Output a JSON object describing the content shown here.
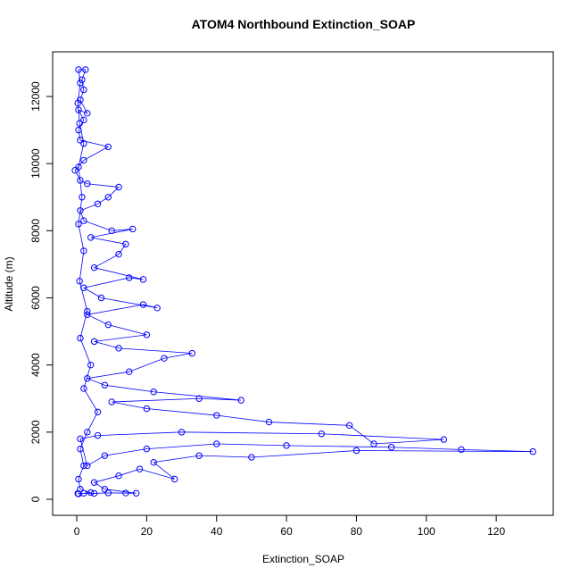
{
  "chart_data": {
    "type": "line",
    "marker": "open-circle",
    "title": "ATOM4 Northbound Extinction_SOAP",
    "x_label": "Extinction_SOAP",
    "y_label": "Altitude (m)",
    "color": "#0000ff",
    "xlim": [
      -6.9,
      136.3
    ],
    "ylim": [
      -479,
      13331
    ],
    "xticks": [
      0,
      20,
      40,
      60,
      80,
      100,
      120
    ],
    "yticks": [
      0,
      2000,
      4000,
      6000,
      8000,
      10000,
      12000
    ],
    "x": [
      0.3,
      2,
      5,
      9,
      14,
      17,
      8,
      5,
      12,
      18,
      28,
      22,
      35,
      50,
      80,
      130.5,
      110,
      90,
      60,
      40,
      20,
      8,
      3,
      1,
      6,
      30,
      70,
      105,
      85,
      78,
      55,
      40,
      20,
      10,
      35,
      47,
      22,
      8,
      3,
      15,
      25,
      33,
      12,
      5,
      20,
      9,
      3,
      19,
      23,
      7,
      2,
      15,
      19,
      5,
      12,
      14,
      4,
      16,
      10,
      2,
      1,
      6,
      9,
      12,
      3,
      1,
      -0.5,
      2,
      9,
      1,
      0.5,
      2,
      0.5,
      3,
      1,
      2,
      1.5,
      2.5,
      0.5,
      1,
      0.3,
      0.8,
      2,
      0.5,
      1.5,
      0.5,
      2,
      0.8,
      3,
      1,
      4,
      2,
      6,
      3,
      1,
      2,
      0.5,
      1,
      4,
      0.5
    ],
    "y": [
      170,
      180,
      175,
      190,
      185,
      180,
      300,
      500,
      700,
      900,
      600,
      1100,
      1300,
      1250,
      1450,
      1420,
      1480,
      1550,
      1600,
      1650,
      1500,
      1300,
      1000,
      1800,
      1900,
      2000,
      1950,
      1780,
      1650,
      2200,
      2300,
      2500,
      2700,
      2900,
      3000,
      2950,
      3200,
      3400,
      3600,
      3800,
      4200,
      4350,
      4500,
      4700,
      4900,
      5200,
      5500,
      5800,
      5700,
      6000,
      6300,
      6600,
      6550,
      6900,
      7300,
      7600,
      7800,
      8050,
      8000,
      8300,
      8600,
      8800,
      9000,
      9300,
      9400,
      9500,
      9800,
      10100,
      10500,
      10700,
      11000,
      11300,
      11600,
      11500,
      11900,
      12200,
      12500,
      12800,
      12800,
      12400,
      11800,
      11200,
      10600,
      9900,
      9000,
      8200,
      7400,
      6500,
      5600,
      4800,
      4000,
      3300,
      2600,
      2000,
      1500,
      1000,
      600,
      300,
      200,
      160
    ]
  }
}
